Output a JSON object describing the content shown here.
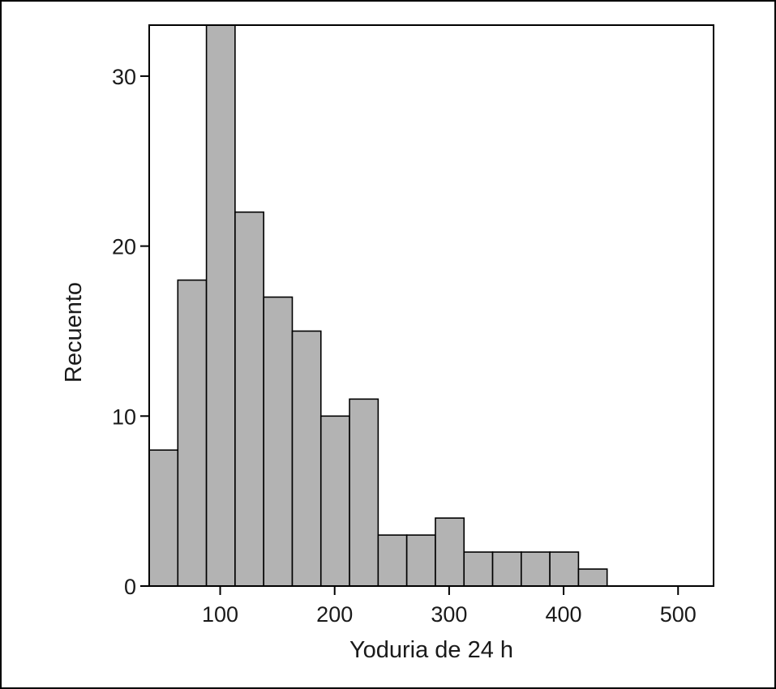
{
  "chart_data": {
    "type": "bar",
    "subtype": "histogram",
    "xlabel": "Yoduria de 24 h",
    "ylabel": "Recuento",
    "xlim": [
      38,
      531
    ],
    "ylim": [
      0,
      33
    ],
    "x_ticks": [
      100,
      200,
      300,
      400,
      500
    ],
    "y_ticks": [
      0,
      10,
      20,
      30
    ],
    "bin_edges": [
      38,
      63,
      88,
      113,
      138,
      163,
      188,
      213,
      238,
      263,
      288,
      313,
      338,
      363,
      388,
      413,
      438
    ],
    "values": [
      8,
      18,
      33,
      22,
      17,
      15,
      10,
      11,
      3,
      3,
      4,
      2,
      2,
      2,
      2,
      1
    ],
    "grid": false,
    "colors": {
      "bar_fill": "#b3b3b3",
      "bar_edge": "#000000"
    }
  }
}
